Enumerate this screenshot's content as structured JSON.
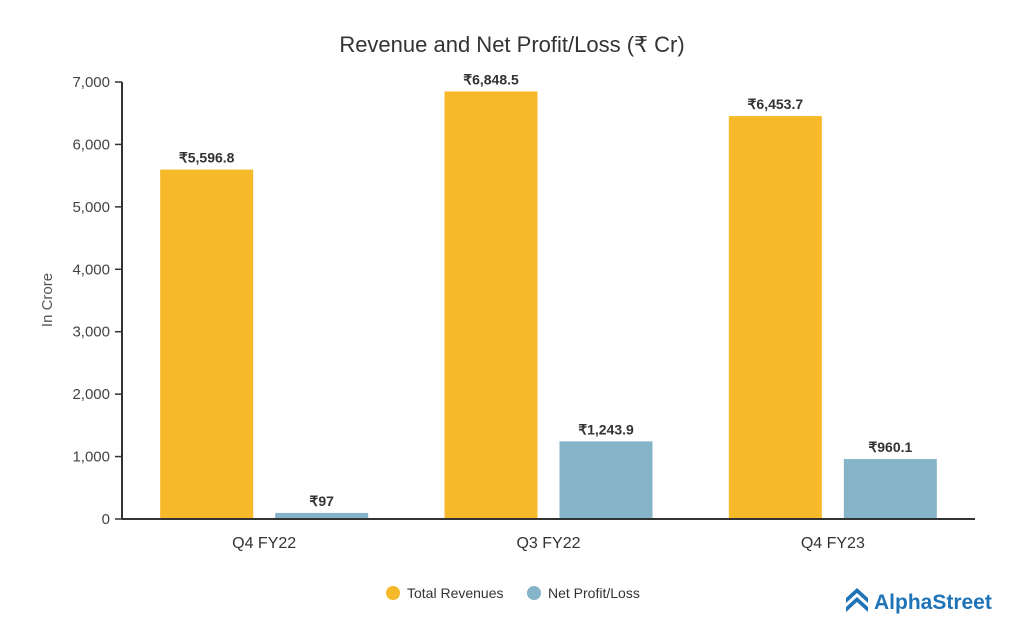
{
  "chart_data": {
    "type": "bar",
    "title": "Revenue and Net Profit/Loss (₹ Cr)",
    "xlabel": "",
    "ylabel": "In Crore",
    "ylim": [
      0,
      7000
    ],
    "yticks": [
      0,
      1000,
      2000,
      3000,
      4000,
      5000,
      6000,
      7000
    ],
    "ytick_labels": [
      "0",
      "1,000",
      "2,000",
      "3,000",
      "4,000",
      "5,000",
      "6,000",
      "7,000"
    ],
    "categories": [
      "Q4 FY22",
      "Q3 FY22",
      "Q4 FY23"
    ],
    "series": [
      {
        "name": "Total Revenues",
        "color": "#f5b929",
        "values": [
          5596.8,
          6848.5,
          6453.7
        ],
        "labels": [
          "₹5,596.8",
          "₹6,848.5",
          "₹6,453.7"
        ]
      },
      {
        "name": "Net Profit/Loss",
        "color": "#85b3c8",
        "values": [
          97,
          1243.9,
          960.1
        ],
        "labels": [
          "₹97",
          "₹1,243.9",
          "₹960.1"
        ]
      }
    ],
    "grid": false,
    "legend_position": "bottom-center"
  },
  "branding": {
    "logo_text": "AlphaStreet",
    "logo_icon": "alphastreet-logo-icon",
    "logo_color": "#1f74b8"
  }
}
